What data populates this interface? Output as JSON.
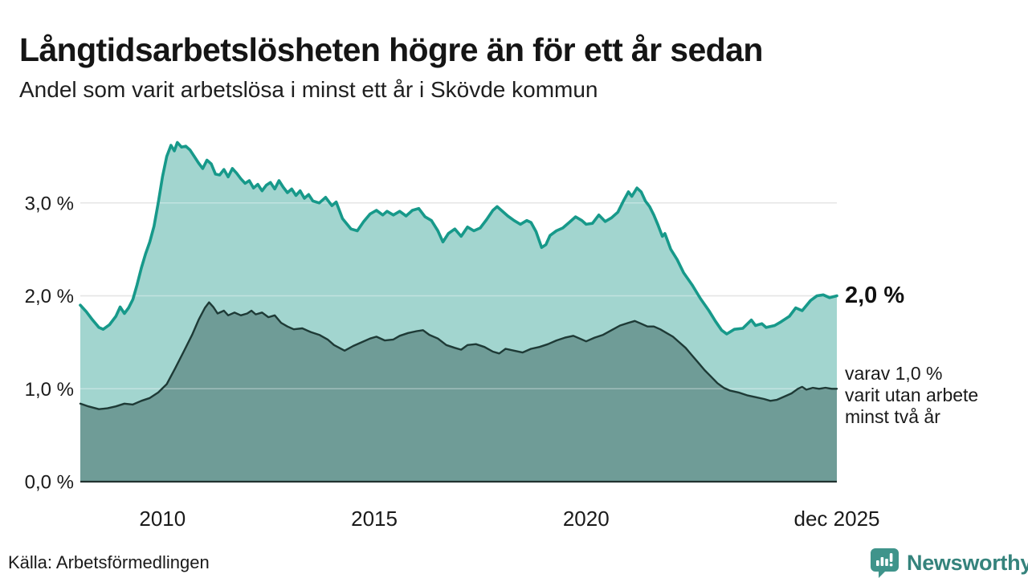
{
  "chart_data": {
    "type": "area",
    "title": "Långtidsarbetslösheten högre än för ett år sedan",
    "subtitle": "Andel som varit arbetslösa i minst ett år i Skövde kommun",
    "xlabel": "",
    "ylabel": "",
    "ylim": [
      0,
      3.9
    ],
    "x_domain": [
      2008.06,
      2025.92
    ],
    "grid": "horizontal",
    "legend_position": "none",
    "colors": {
      "total_line": "#17998a",
      "total_fill": "#a2d5cf",
      "two_year_line": "#1e3a36",
      "two_year_fill": "#6f9c97",
      "gridline": "#d8d8d8",
      "baseline": "#223330"
    },
    "y_ticks": [
      {
        "label": "0,0 %",
        "value": 0
      },
      {
        "label": "1,0 %",
        "value": 1
      },
      {
        "label": "2,0 %",
        "value": 2
      },
      {
        "label": "3,0 %",
        "value": 3
      }
    ],
    "x_ticks": [
      {
        "label": "2010",
        "x": 2010
      },
      {
        "label": "2015",
        "x": 2015
      },
      {
        "label": "2020",
        "x": 2020
      },
      {
        "label": "dec 2025",
        "x": 2025.92
      }
    ],
    "series": [
      {
        "name": "minst ett år",
        "points": [
          [
            2008.06,
            1.9
          ],
          [
            2008.2,
            1.83
          ],
          [
            2008.35,
            1.74
          ],
          [
            2008.5,
            1.66
          ],
          [
            2008.6,
            1.64
          ],
          [
            2008.75,
            1.69
          ],
          [
            2008.9,
            1.78
          ],
          [
            2009.0,
            1.88
          ],
          [
            2009.1,
            1.81
          ],
          [
            2009.2,
            1.87
          ],
          [
            2009.3,
            1.96
          ],
          [
            2009.4,
            2.12
          ],
          [
            2009.5,
            2.3
          ],
          [
            2009.6,
            2.45
          ],
          [
            2009.7,
            2.58
          ],
          [
            2009.8,
            2.75
          ],
          [
            2009.9,
            3.0
          ],
          [
            2010.0,
            3.28
          ],
          [
            2010.1,
            3.5
          ],
          [
            2010.2,
            3.62
          ],
          [
            2010.28,
            3.56
          ],
          [
            2010.35,
            3.65
          ],
          [
            2010.45,
            3.6
          ],
          [
            2010.55,
            3.61
          ],
          [
            2010.65,
            3.57
          ],
          [
            2010.75,
            3.5
          ],
          [
            2010.85,
            3.43
          ],
          [
            2010.95,
            3.37
          ],
          [
            2011.05,
            3.46
          ],
          [
            2011.15,
            3.42
          ],
          [
            2011.25,
            3.31
          ],
          [
            2011.35,
            3.3
          ],
          [
            2011.45,
            3.36
          ],
          [
            2011.55,
            3.28
          ],
          [
            2011.65,
            3.37
          ],
          [
            2011.75,
            3.32
          ],
          [
            2011.85,
            3.26
          ],
          [
            2011.95,
            3.21
          ],
          [
            2012.05,
            3.24
          ],
          [
            2012.15,
            3.16
          ],
          [
            2012.25,
            3.2
          ],
          [
            2012.35,
            3.13
          ],
          [
            2012.45,
            3.19
          ],
          [
            2012.55,
            3.22
          ],
          [
            2012.65,
            3.15
          ],
          [
            2012.75,
            3.24
          ],
          [
            2012.85,
            3.17
          ],
          [
            2012.95,
            3.11
          ],
          [
            2013.05,
            3.15
          ],
          [
            2013.15,
            3.08
          ],
          [
            2013.25,
            3.13
          ],
          [
            2013.35,
            3.05
          ],
          [
            2013.45,
            3.09
          ],
          [
            2013.55,
            3.02
          ],
          [
            2013.7,
            3.0
          ],
          [
            2013.85,
            3.06
          ],
          [
            2014.0,
            2.97
          ],
          [
            2014.1,
            3.01
          ],
          [
            2014.25,
            2.83
          ],
          [
            2014.45,
            2.72
          ],
          [
            2014.6,
            2.7
          ],
          [
            2014.75,
            2.8
          ],
          [
            2014.9,
            2.88
          ],
          [
            2015.05,
            2.92
          ],
          [
            2015.2,
            2.87
          ],
          [
            2015.3,
            2.91
          ],
          [
            2015.45,
            2.87
          ],
          [
            2015.6,
            2.91
          ],
          [
            2015.75,
            2.86
          ],
          [
            2015.9,
            2.92
          ],
          [
            2016.05,
            2.94
          ],
          [
            2016.2,
            2.85
          ],
          [
            2016.35,
            2.81
          ],
          [
            2016.5,
            2.7
          ],
          [
            2016.62,
            2.58
          ],
          [
            2016.75,
            2.67
          ],
          [
            2016.9,
            2.72
          ],
          [
            2017.05,
            2.64
          ],
          [
            2017.2,
            2.74
          ],
          [
            2017.35,
            2.7
          ],
          [
            2017.5,
            2.73
          ],
          [
            2017.65,
            2.82
          ],
          [
            2017.8,
            2.92
          ],
          [
            2017.9,
            2.96
          ],
          [
            2018.0,
            2.92
          ],
          [
            2018.15,
            2.86
          ],
          [
            2018.3,
            2.81
          ],
          [
            2018.45,
            2.77
          ],
          [
            2018.6,
            2.81
          ],
          [
            2018.7,
            2.79
          ],
          [
            2018.82,
            2.69
          ],
          [
            2018.95,
            2.52
          ],
          [
            2019.05,
            2.55
          ],
          [
            2019.15,
            2.65
          ],
          [
            2019.3,
            2.7
          ],
          [
            2019.45,
            2.73
          ],
          [
            2019.6,
            2.79
          ],
          [
            2019.75,
            2.85
          ],
          [
            2019.9,
            2.81
          ],
          [
            2020.0,
            2.77
          ],
          [
            2020.15,
            2.78
          ],
          [
            2020.3,
            2.87
          ],
          [
            2020.45,
            2.8
          ],
          [
            2020.6,
            2.84
          ],
          [
            2020.75,
            2.9
          ],
          [
            2020.88,
            3.02
          ],
          [
            2021.0,
            3.12
          ],
          [
            2021.08,
            3.07
          ],
          [
            2021.2,
            3.16
          ],
          [
            2021.3,
            3.12
          ],
          [
            2021.4,
            3.02
          ],
          [
            2021.5,
            2.96
          ],
          [
            2021.6,
            2.87
          ],
          [
            2021.7,
            2.76
          ],
          [
            2021.8,
            2.64
          ],
          [
            2021.86,
            2.67
          ],
          [
            2022.0,
            2.5
          ],
          [
            2022.15,
            2.39
          ],
          [
            2022.3,
            2.25
          ],
          [
            2022.5,
            2.12
          ],
          [
            2022.7,
            1.97
          ],
          [
            2022.9,
            1.84
          ],
          [
            2023.05,
            1.73
          ],
          [
            2023.2,
            1.63
          ],
          [
            2023.32,
            1.59
          ],
          [
            2023.5,
            1.64
          ],
          [
            2023.7,
            1.65
          ],
          [
            2023.9,
            1.74
          ],
          [
            2024.0,
            1.68
          ],
          [
            2024.15,
            1.7
          ],
          [
            2024.25,
            1.66
          ],
          [
            2024.45,
            1.68
          ],
          [
            2024.6,
            1.72
          ],
          [
            2024.8,
            1.78
          ],
          [
            2024.95,
            1.87
          ],
          [
            2025.1,
            1.84
          ],
          [
            2025.3,
            1.95
          ],
          [
            2025.45,
            2.0
          ],
          [
            2025.6,
            2.01
          ],
          [
            2025.75,
            1.98
          ],
          [
            2025.92,
            2.0
          ]
        ]
      },
      {
        "name": "minst två år",
        "points": [
          [
            2008.06,
            0.84
          ],
          [
            2008.25,
            0.81
          ],
          [
            2008.5,
            0.78
          ],
          [
            2008.7,
            0.79
          ],
          [
            2008.9,
            0.81
          ],
          [
            2009.1,
            0.84
          ],
          [
            2009.3,
            0.83
          ],
          [
            2009.5,
            0.87
          ],
          [
            2009.7,
            0.9
          ],
          [
            2009.9,
            0.96
          ],
          [
            2010.1,
            1.05
          ],
          [
            2010.3,
            1.22
          ],
          [
            2010.5,
            1.4
          ],
          [
            2010.7,
            1.58
          ],
          [
            2010.85,
            1.74
          ],
          [
            2011.0,
            1.87
          ],
          [
            2011.1,
            1.93
          ],
          [
            2011.2,
            1.88
          ],
          [
            2011.3,
            1.81
          ],
          [
            2011.45,
            1.84
          ],
          [
            2011.55,
            1.79
          ],
          [
            2011.7,
            1.82
          ],
          [
            2011.85,
            1.79
          ],
          [
            2012.0,
            1.81
          ],
          [
            2012.1,
            1.84
          ],
          [
            2012.2,
            1.8
          ],
          [
            2012.35,
            1.82
          ],
          [
            2012.5,
            1.77
          ],
          [
            2012.65,
            1.79
          ],
          [
            2012.8,
            1.71
          ],
          [
            2012.95,
            1.67
          ],
          [
            2013.1,
            1.64
          ],
          [
            2013.3,
            1.65
          ],
          [
            2013.5,
            1.61
          ],
          [
            2013.7,
            1.58
          ],
          [
            2013.9,
            1.53
          ],
          [
            2014.05,
            1.47
          ],
          [
            2014.3,
            1.41
          ],
          [
            2014.5,
            1.46
          ],
          [
            2014.7,
            1.5
          ],
          [
            2014.9,
            1.54
          ],
          [
            2015.05,
            1.56
          ],
          [
            2015.25,
            1.52
          ],
          [
            2015.45,
            1.53
          ],
          [
            2015.6,
            1.57
          ],
          [
            2015.8,
            1.6
          ],
          [
            2016.0,
            1.62
          ],
          [
            2016.15,
            1.63
          ],
          [
            2016.3,
            1.58
          ],
          [
            2016.5,
            1.54
          ],
          [
            2016.7,
            1.47
          ],
          [
            2016.9,
            1.44
          ],
          [
            2017.05,
            1.42
          ],
          [
            2017.2,
            1.47
          ],
          [
            2017.4,
            1.48
          ],
          [
            2017.6,
            1.45
          ],
          [
            2017.8,
            1.4
          ],
          [
            2017.95,
            1.38
          ],
          [
            2018.1,
            1.43
          ],
          [
            2018.3,
            1.41
          ],
          [
            2018.5,
            1.39
          ],
          [
            2018.7,
            1.43
          ],
          [
            2018.9,
            1.45
          ],
          [
            2019.1,
            1.48
          ],
          [
            2019.3,
            1.52
          ],
          [
            2019.5,
            1.55
          ],
          [
            2019.7,
            1.57
          ],
          [
            2019.85,
            1.54
          ],
          [
            2020.0,
            1.51
          ],
          [
            2020.2,
            1.55
          ],
          [
            2020.4,
            1.58
          ],
          [
            2020.6,
            1.63
          ],
          [
            2020.8,
            1.68
          ],
          [
            2021.0,
            1.71
          ],
          [
            2021.15,
            1.73
          ],
          [
            2021.3,
            1.7
          ],
          [
            2021.45,
            1.67
          ],
          [
            2021.6,
            1.67
          ],
          [
            2021.75,
            1.64
          ],
          [
            2021.9,
            1.6
          ],
          [
            2022.05,
            1.56
          ],
          [
            2022.2,
            1.5
          ],
          [
            2022.35,
            1.44
          ],
          [
            2022.5,
            1.36
          ],
          [
            2022.65,
            1.28
          ],
          [
            2022.8,
            1.2
          ],
          [
            2022.95,
            1.13
          ],
          [
            2023.1,
            1.06
          ],
          [
            2023.25,
            1.01
          ],
          [
            2023.4,
            0.98
          ],
          [
            2023.6,
            0.96
          ],
          [
            2023.8,
            0.93
          ],
          [
            2024.0,
            0.91
          ],
          [
            2024.2,
            0.89
          ],
          [
            2024.35,
            0.87
          ],
          [
            2024.5,
            0.88
          ],
          [
            2024.7,
            0.92
          ],
          [
            2024.85,
            0.95
          ],
          [
            2025.0,
            1.0
          ],
          [
            2025.1,
            1.02
          ],
          [
            2025.2,
            0.99
          ],
          [
            2025.35,
            1.01
          ],
          [
            2025.5,
            1.0
          ],
          [
            2025.65,
            1.01
          ],
          [
            2025.8,
            1.0
          ],
          [
            2025.92,
            1.0
          ]
        ]
      }
    ],
    "annotations": {
      "end_total": "2,0 %",
      "end_two_year": "varav 1,0 %\nvarit utan arbete\nminst två år"
    }
  },
  "footer": {
    "source": "Källa: Arbetsförmedlingen",
    "brand": "Newsworthy"
  }
}
